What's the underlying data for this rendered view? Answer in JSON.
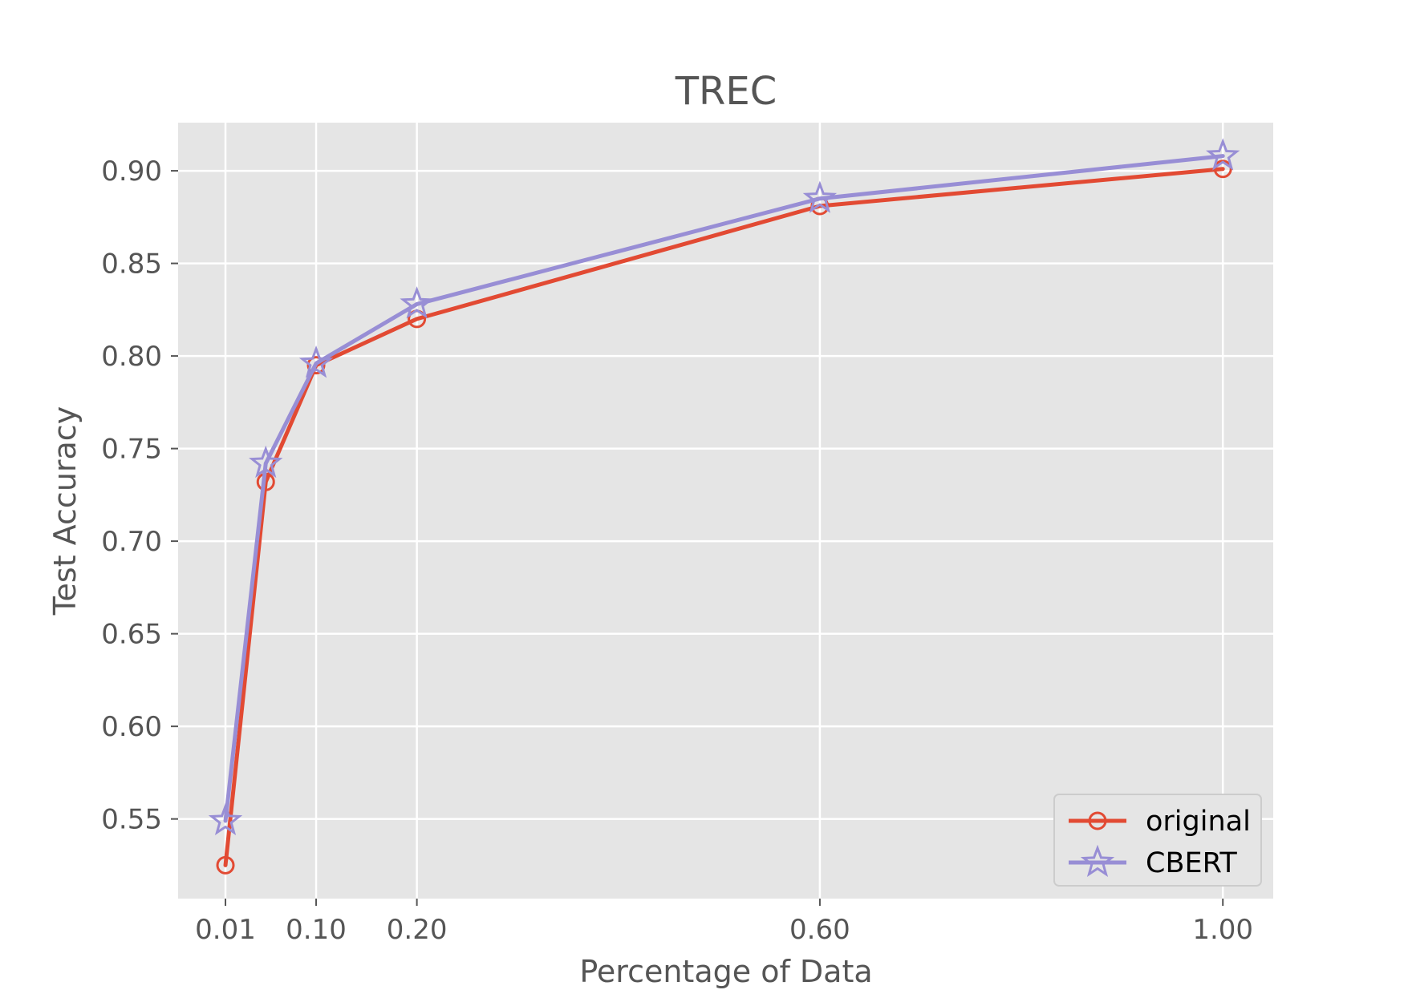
{
  "chart_data": {
    "type": "line",
    "title": "TREC",
    "xlabel": "Percentage of Data",
    "ylabel": "Test Accuracy",
    "xlim": [
      -0.037,
      1.05
    ],
    "ylim": [
      0.507,
      0.926
    ],
    "xticks": [
      0.01,
      0.1,
      0.2,
      0.6,
      1.0
    ],
    "xtick_labels": [
      "0.01",
      "0.10",
      "0.20",
      "0.60",
      "1.00"
    ],
    "yticks": [
      0.55,
      0.6,
      0.65,
      0.7,
      0.75,
      0.8,
      0.85,
      0.9
    ],
    "ytick_labels": [
      "0.55",
      "0.60",
      "0.65",
      "0.70",
      "0.75",
      "0.80",
      "0.85",
      "0.90"
    ],
    "grid": true,
    "background": "#e5e5e5",
    "legend_position": "lower-right",
    "x": [
      0.01,
      0.05,
      0.1,
      0.2,
      0.6,
      1.0
    ],
    "series": [
      {
        "name": "original",
        "values": [
          0.525,
          0.732,
          0.795,
          0.82,
          0.881,
          0.901
        ],
        "color": "#e24a33",
        "marker": "circle"
      },
      {
        "name": "CBERT",
        "values": [
          0.549,
          0.742,
          0.796,
          0.828,
          0.885,
          0.908
        ],
        "color": "#988ed5",
        "marker": "star"
      }
    ]
  }
}
